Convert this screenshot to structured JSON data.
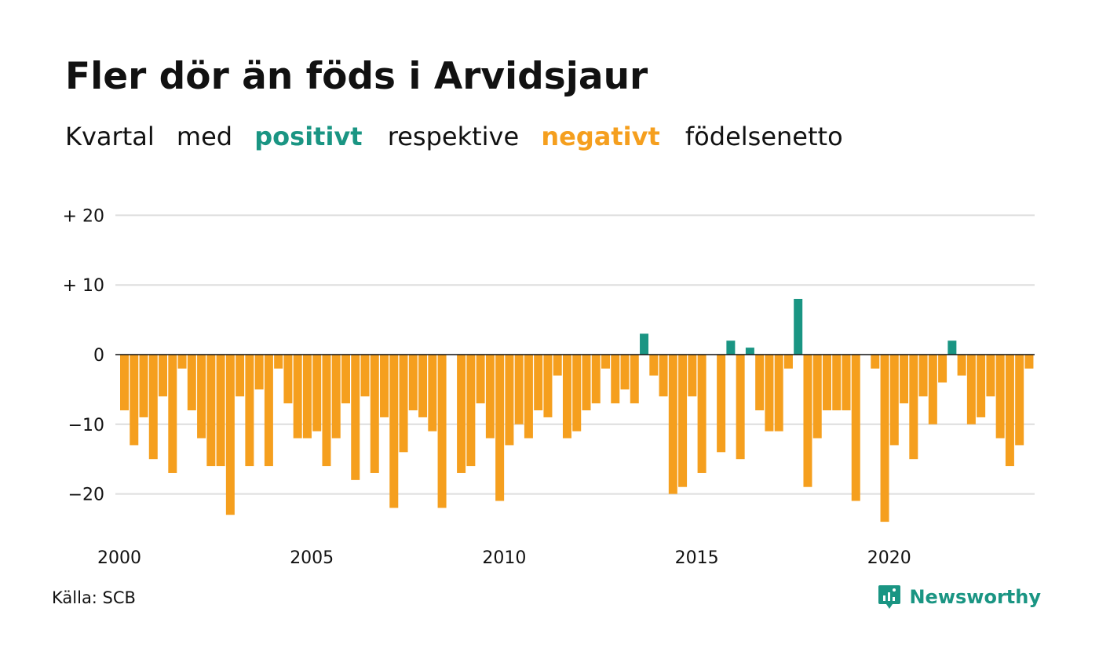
{
  "title": "Fler dör än föds i Arvidsjaur",
  "subtitle": {
    "part1": "Kvartal",
    "part2": "med",
    "positive_word": "positivt",
    "part3": "respektive",
    "negative_word": "negativt",
    "part4": "födelsenetto"
  },
  "source": "Källa: SCB",
  "brand": {
    "name": "Newsworthy",
    "icon": "newsworthy-logo-icon"
  },
  "colors": {
    "positive": "#1a9583",
    "negative": "#f59f1e",
    "grid": "#dddddd",
    "axis": "#111111"
  },
  "chart_data": {
    "type": "bar",
    "xlabel": "",
    "ylabel": "",
    "ylim": [
      -25,
      20
    ],
    "yticks": [
      20,
      10,
      0,
      -10,
      -20
    ],
    "ytick_labels": [
      "+ 20",
      "+ 10",
      "0",
      "−10",
      "−20"
    ],
    "xticks": [
      2000,
      2005,
      2010,
      2015,
      2020
    ],
    "xtick_labels": [
      "2000",
      "2005",
      "2010",
      "2015",
      "2020"
    ],
    "grid": true,
    "first_quarter": "2000 Q1",
    "values": [
      -8,
      -13,
      -9,
      -15,
      -6,
      -17,
      -2,
      -8,
      -12,
      -16,
      -16,
      -23,
      -6,
      -16,
      -5,
      -16,
      -2,
      -7,
      -12,
      -12,
      -11,
      -16,
      -12,
      -7,
      -18,
      -6,
      -17,
      -9,
      -22,
      -14,
      -8,
      -9,
      -11,
      -22,
      0,
      -17,
      -16,
      -7,
      -12,
      -21,
      -13,
      -10,
      -12,
      -8,
      -9,
      -3,
      -12,
      -11,
      -8,
      -7,
      -2,
      -7,
      -5,
      -7,
      3,
      -3,
      -6,
      -20,
      -19,
      -6,
      -17,
      0,
      -14,
      2,
      -15,
      1,
      -8,
      -11,
      -11,
      -2,
      8,
      -19,
      -12,
      -8,
      -8,
      -8,
      -21,
      0,
      -2,
      -24,
      -13,
      -7,
      -15,
      -6,
      -10,
      -4,
      2,
      -3,
      -10,
      -9,
      -6,
      -12,
      -16,
      -13,
      -2
    ]
  }
}
